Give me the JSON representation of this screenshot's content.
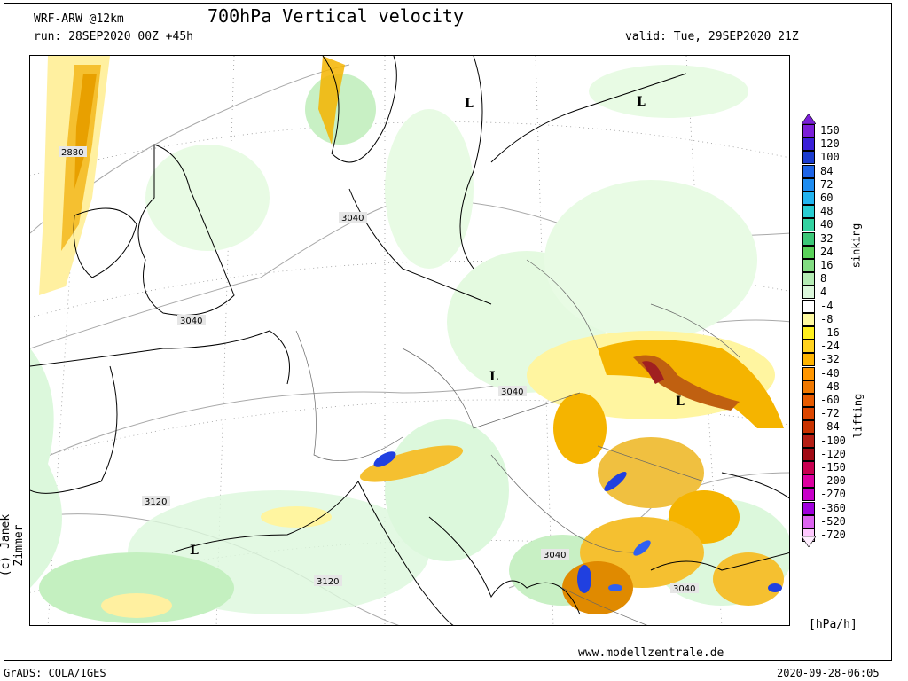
{
  "header": {
    "model": "WRF-ARW @12km",
    "title": "700hPa Vertical velocity",
    "run": "run: 28SEP2020 00Z +45h",
    "valid": "valid: Tue, 29SEP2020 21Z"
  },
  "footer": {
    "grads": "GrADS: COLA/IGES",
    "website": "www.modellzentrale.de",
    "timestamp": "2020-09-28-06:05",
    "copyright": "(c) Janek Zimmer"
  },
  "colorbar": {
    "units": "[hPa/h]",
    "label_sinking": "sinking",
    "label_lifting": "lifting",
    "labels": [
      "150",
      "120",
      "100",
      "84",
      "72",
      "60",
      "48",
      "40",
      "32",
      "24",
      "16",
      "8",
      "4",
      "-4",
      "-8",
      "-16",
      "-24",
      "-32",
      "-40",
      "-48",
      "-60",
      "-72",
      "-84",
      "-100",
      "-120",
      "-150",
      "-200",
      "-270",
      "-360",
      "-520",
      "-720"
    ],
    "colors": [
      "#7b1fd8",
      "#3a20d8",
      "#1c3ccf",
      "#1e64e6",
      "#1e8cf0",
      "#22b4f0",
      "#28cdd2",
      "#32d2a0",
      "#3cc878",
      "#5ad25a",
      "#82dc82",
      "#b4ecb4",
      "#dcf8dc",
      "#ffffff",
      "#fffaa0",
      "#fff01e",
      "#ffd21e",
      "#ffb400",
      "#ff9600",
      "#f07800",
      "#e65a00",
      "#dc4600",
      "#c83200",
      "#b41e14",
      "#a00a14",
      "#c80050",
      "#dc00a0",
      "#c800c8",
      "#a000dc",
      "#dc64f0",
      "#ffc8ff"
    ]
  },
  "map": {
    "contour_labels": [
      "2880",
      "3040",
      "3040",
      "3040",
      "3040",
      "3040",
      "3120",
      "3120"
    ],
    "pressure_systems": [
      "L",
      "L",
      "L",
      "L",
      "L"
    ],
    "colors": {
      "sinking_light": "#dcf8dc",
      "sinking": "#a8e4a0",
      "lifting_light": "#fff5a0",
      "lifting": "#f5b400",
      "lifting_strong": "#e08a00",
      "lifting_peak": "#a02020",
      "sinking_strong": "#2040e0",
      "coast": "#000000",
      "contour": "#a0a0a0"
    }
  }
}
